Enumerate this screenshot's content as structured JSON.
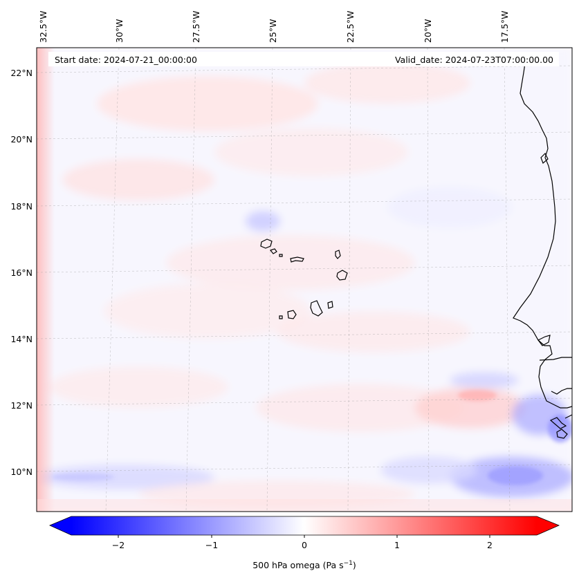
{
  "header": {
    "start_date": "Start date: 2024-07-21_00:00:00",
    "valid_date": "Valid_date: 2024-07-23T07:00:00.00"
  },
  "axes": {
    "lon_labels": [
      "32.5°W",
      "30°W",
      "27.5°W",
      "25°W",
      "22.5°W",
      "20°W",
      "17.5°W"
    ],
    "lat_labels": [
      "22°N",
      "20°N",
      "18°N",
      "16°N",
      "14°N",
      "12°N",
      "10°N"
    ]
  },
  "colorbar": {
    "ticks": [
      "−2",
      "−1",
      "0",
      "1",
      "2"
    ],
    "label": "500 hPa omega (Pa s",
    "label_sup": "−1",
    "label_end": ")",
    "colors": {
      "negative": "#0000ff",
      "zero": "#ffffff",
      "positive": "#ff0000"
    },
    "range": [
      -2.5,
      2.5
    ]
  },
  "map": {
    "field": "500 hPa omega",
    "colormap": "bwr",
    "gridlines": true
  }
}
